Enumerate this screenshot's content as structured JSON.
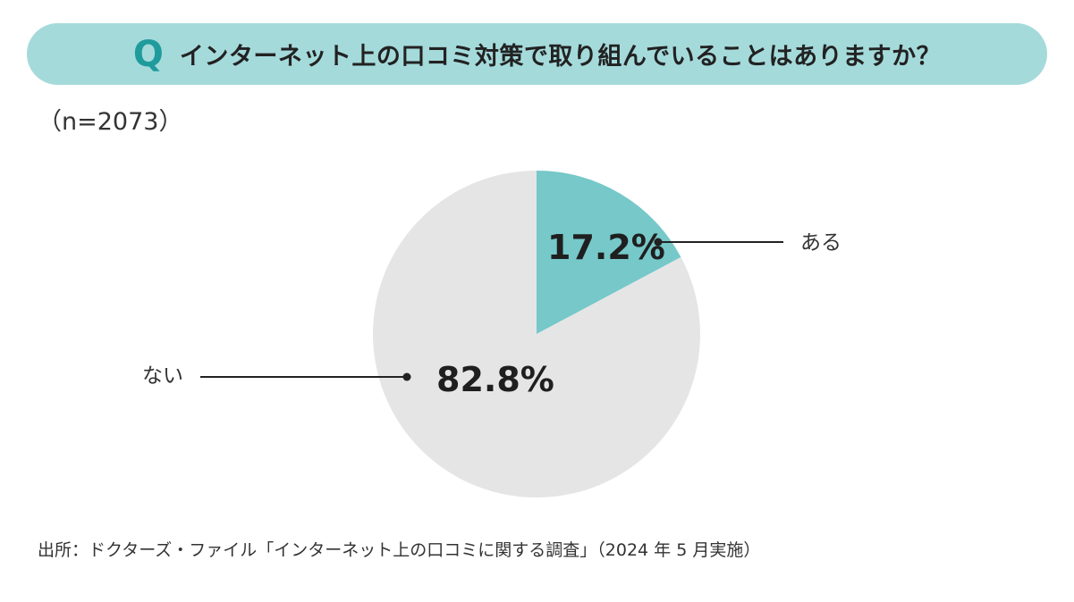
{
  "question": {
    "mark": "Q",
    "text": "インターネット上の口コミ対策で取り組んでいることはありますか？"
  },
  "sample_size_label": "（n=2073）",
  "chart_data": {
    "type": "pie",
    "start_angle_deg": 0,
    "direction": "clockwise",
    "slices": [
      {
        "label": "ある",
        "value": 17.2,
        "value_label": "17.2%",
        "color": "#76c8c9"
      },
      {
        "label": "ない",
        "value": 82.8,
        "value_label": "82.8%",
        "color": "#e5e5e5"
      }
    ]
  },
  "source_note": "出所：ドクターズ・ファイル「インターネット上の口コミに関する調査」（2024 年 5 月実施）",
  "colors": {
    "question_bar": "#a5dadb",
    "question_mark": "#1f9b9c",
    "text": "#333333",
    "leader_line": "#222222"
  }
}
